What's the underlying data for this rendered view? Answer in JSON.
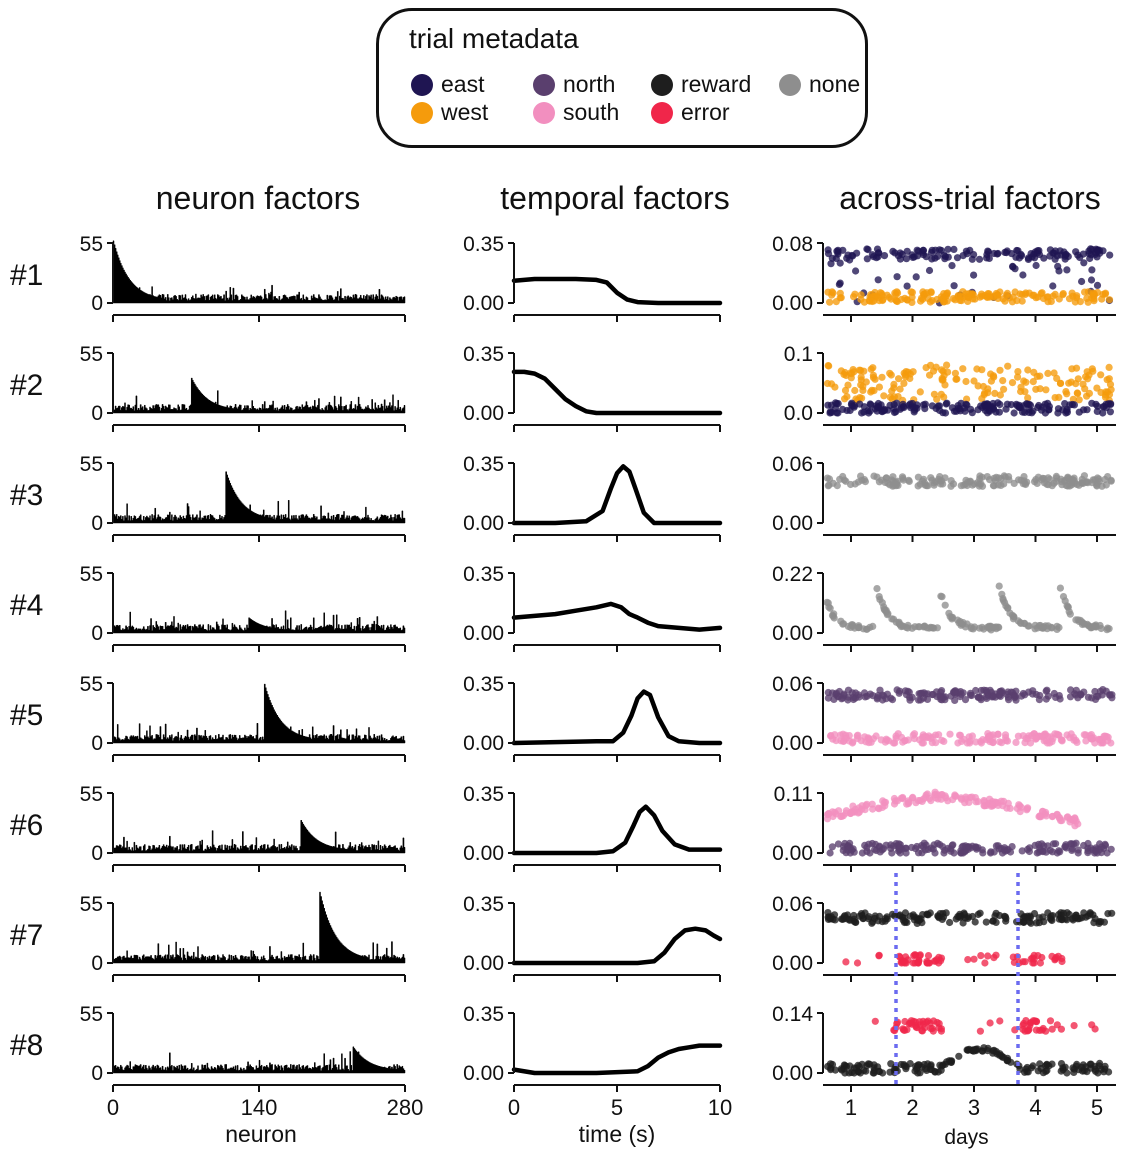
{
  "legend": {
    "title": "trial metadata",
    "items": [
      {
        "label": "east",
        "color": "#1f1552"
      },
      {
        "label": "west",
        "color": "#f59b0c"
      },
      {
        "label": "north",
        "color": "#5a3f6e"
      },
      {
        "label": "south",
        "color": "#f28fbf"
      },
      {
        "label": "reward",
        "color": "#1e1e1e"
      },
      {
        "label": "error",
        "color": "#f0264a"
      },
      {
        "label": "none",
        "color": "#8e8e8e"
      }
    ]
  },
  "columns": {
    "neuron": "neuron factors",
    "temporal": "temporal factors",
    "trial": "across-trial factors"
  },
  "chart_data": {
    "type": "tensor-decomposition-factors",
    "rows": [
      "#1",
      "#2",
      "#3",
      "#4",
      "#5",
      "#6",
      "#7",
      "#8"
    ],
    "neuron_factors": {
      "type": "bar",
      "xlabel": "neuron",
      "xlim": [
        0,
        280
      ],
      "xticks": [
        "0",
        "140",
        "280"
      ],
      "ylim": [
        0,
        55
      ],
      "yticks": [
        "0",
        "55"
      ],
      "peaks": [
        {
          "factor": "#1",
          "start_neuron": 0,
          "peak": 55
        },
        {
          "factor": "#2",
          "start_neuron": 75,
          "peak": 30
        },
        {
          "factor": "#3",
          "start_neuron": 108,
          "peak": 45
        },
        {
          "factor": "#4",
          "start_neuron": 130,
          "peak": 12
        },
        {
          "factor": "#5",
          "start_neuron": 145,
          "peak": 52
        },
        {
          "factor": "#6",
          "start_neuron": 180,
          "peak": 28
        },
        {
          "factor": "#7",
          "start_neuron": 198,
          "peak": 63
        },
        {
          "factor": "#8",
          "start_neuron": 230,
          "peak": 22
        }
      ]
    },
    "temporal_factors": {
      "type": "line",
      "xlabel": "time (s)",
      "xlim": [
        0,
        10
      ],
      "xticks": [
        "0",
        "5",
        "10"
      ],
      "ylim": [
        0,
        0.35
      ],
      "yticks": [
        "0.00",
        "0.35"
      ],
      "series": [
        {
          "factor": "#1",
          "x": [
            0,
            1,
            2,
            3,
            4,
            4.5,
            5,
            5.5,
            6,
            7,
            8,
            9,
            10
          ],
          "y": [
            0.13,
            0.14,
            0.14,
            0.14,
            0.135,
            0.12,
            0.06,
            0.02,
            0.005,
            0.0,
            0.0,
            0.0,
            0.0
          ]
        },
        {
          "factor": "#2",
          "x": [
            0,
            0.5,
            1,
            1.5,
            2,
            2.5,
            3,
            3.5,
            4,
            5,
            6,
            8,
            10
          ],
          "y": [
            0.24,
            0.24,
            0.23,
            0.2,
            0.14,
            0.08,
            0.04,
            0.01,
            0.0,
            0.0,
            0.0,
            0.0,
            0.0
          ]
        },
        {
          "factor": "#3",
          "x": [
            0,
            2,
            3.5,
            4.3,
            4.7,
            5.0,
            5.3,
            5.6,
            5.9,
            6.3,
            6.8,
            8,
            10
          ],
          "y": [
            0.0,
            0.0,
            0.01,
            0.07,
            0.2,
            0.29,
            0.33,
            0.3,
            0.2,
            0.06,
            0.0,
            0.0,
            0.0
          ]
        },
        {
          "factor": "#4",
          "x": [
            0,
            1,
            2,
            3,
            4,
            4.7,
            5.2,
            5.6,
            6,
            6.5,
            7,
            8,
            9,
            10
          ],
          "y": [
            0.09,
            0.1,
            0.11,
            0.13,
            0.15,
            0.17,
            0.15,
            0.11,
            0.09,
            0.06,
            0.04,
            0.03,
            0.02,
            0.03
          ]
        },
        {
          "factor": "#5",
          "x": [
            0,
            2,
            4,
            4.8,
            5.3,
            5.7,
            6.0,
            6.3,
            6.6,
            7.0,
            7.5,
            8,
            9,
            10
          ],
          "y": [
            0.0,
            0.005,
            0.01,
            0.01,
            0.06,
            0.16,
            0.26,
            0.3,
            0.28,
            0.15,
            0.04,
            0.01,
            0.0,
            0.0
          ]
        },
        {
          "factor": "#6",
          "x": [
            0,
            2,
            4,
            4.8,
            5.4,
            5.8,
            6.1,
            6.4,
            6.8,
            7.2,
            7.8,
            8.5,
            9,
            10
          ],
          "y": [
            0.0,
            0.0,
            0.0,
            0.01,
            0.06,
            0.16,
            0.24,
            0.27,
            0.22,
            0.13,
            0.05,
            0.02,
            0.02,
            0.02
          ]
        },
        {
          "factor": "#7",
          "x": [
            0,
            2,
            4,
            6,
            6.8,
            7.3,
            7.8,
            8.3,
            8.8,
            9.3,
            9.7,
            10
          ],
          "y": [
            0.0,
            0.0,
            0.0,
            0.0,
            0.01,
            0.06,
            0.14,
            0.19,
            0.2,
            0.19,
            0.16,
            0.14
          ]
        },
        {
          "factor": "#8",
          "x": [
            0,
            1,
            2,
            4,
            6,
            6.5,
            7,
            7.5,
            8,
            8.5,
            9,
            10
          ],
          "y": [
            0.02,
            0.0,
            0.0,
            0.0,
            0.01,
            0.04,
            0.09,
            0.12,
            0.14,
            0.15,
            0.16,
            0.16
          ]
        }
      ]
    },
    "across_trial_factors": {
      "type": "scatter",
      "xlabel": "days",
      "xticks": [
        "1",
        "2",
        "3",
        "4",
        "5"
      ],
      "rows": [
        {
          "factor": "#1",
          "ylim": [
            0,
            0.08
          ],
          "yticks": [
            "0.00",
            "0.08"
          ],
          "groups": [
            {
              "label": "east",
              "level": 0.065
            },
            {
              "label": "west",
              "level": 0.008
            }
          ]
        },
        {
          "factor": "#2",
          "ylim": [
            0,
            0.1
          ],
          "yticks": [
            "0.0",
            "0.1"
          ],
          "groups": [
            {
              "label": "west",
              "level": 0.05
            },
            {
              "label": "east",
              "level": 0.008
            }
          ]
        },
        {
          "factor": "#3",
          "ylim": [
            0,
            0.06
          ],
          "yticks": [
            "0.00",
            "0.06"
          ],
          "groups": [
            {
              "label": "none",
              "level": 0.042
            }
          ]
        },
        {
          "factor": "#4",
          "ylim": [
            0,
            0.22
          ],
          "yticks": [
            "0.00",
            "0.22"
          ],
          "groups": [
            {
              "label": "none",
              "level": 0.02
            }
          ]
        },
        {
          "factor": "#5",
          "ylim": [
            0,
            0.06
          ],
          "yticks": [
            "0.00",
            "0.06"
          ],
          "groups": [
            {
              "label": "north",
              "level": 0.048
            },
            {
              "label": "south",
              "level": 0.004
            }
          ]
        },
        {
          "factor": "#6",
          "ylim": [
            0,
            0.11
          ],
          "yticks": [
            "0.00",
            "0.11"
          ],
          "groups": [
            {
              "label": "south",
              "level": 0.085
            },
            {
              "label": "north",
              "level": 0.008
            }
          ]
        },
        {
          "factor": "#7",
          "ylim": [
            0,
            0.06
          ],
          "yticks": [
            "0.00",
            "0.06"
          ],
          "groups": [
            {
              "label": "reward",
              "level": 0.045
            },
            {
              "label": "error",
              "level": 0.003
            }
          ]
        },
        {
          "factor": "#8",
          "ylim": [
            0,
            0.14
          ],
          "yticks": [
            "0.00",
            "0.14"
          ],
          "groups": [
            {
              "label": "error",
              "level": 0.11
            },
            {
              "label": "reward",
              "level": 0.01
            }
          ]
        }
      ]
    }
  }
}
